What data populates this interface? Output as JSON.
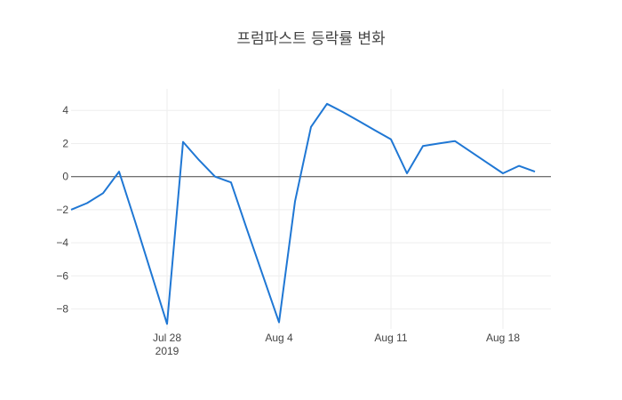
{
  "chart_data": {
    "type": "line",
    "title": "프럼파스트 등락률 변화",
    "xlabel": "",
    "ylabel": "",
    "x_range": [
      "2019-07-22",
      "2019-08-21"
    ],
    "ylim": [
      -9.2,
      5.3
    ],
    "x_ticks": [
      {
        "date": "2019-07-28",
        "label": "Jul 28",
        "sublabel": "2019"
      },
      {
        "date": "2019-08-04",
        "label": "Aug 4",
        "sublabel": ""
      },
      {
        "date": "2019-08-11",
        "label": "Aug 11",
        "sublabel": ""
      },
      {
        "date": "2019-08-18",
        "label": "Aug 18",
        "sublabel": ""
      }
    ],
    "y_ticks": [
      {
        "value": 4,
        "label": "4"
      },
      {
        "value": 2,
        "label": "2"
      },
      {
        "value": 0,
        "label": "0"
      },
      {
        "value": -2,
        "label": "−2"
      },
      {
        "value": -4,
        "label": "−4"
      },
      {
        "value": -6,
        "label": "−6"
      },
      {
        "value": -8,
        "label": "−8"
      }
    ],
    "grid": true,
    "series": [
      {
        "name": "",
        "color": "#1f77d4",
        "points": [
          {
            "x": "2019-07-22",
            "y": -2.0
          },
          {
            "x": "2019-07-23",
            "y": -1.6
          },
          {
            "x": "2019-07-24",
            "y": -1.0
          },
          {
            "x": "2019-07-25",
            "y": 0.3
          },
          {
            "x": "2019-07-26",
            "y": -2.7
          },
          {
            "x": "2019-07-27",
            "y": -5.8
          },
          {
            "x": "2019-07-28",
            "y": -8.9
          },
          {
            "x": "2019-07-29",
            "y": 2.1
          },
          {
            "x": "2019-07-30",
            "y": 1.0
          },
          {
            "x": "2019-07-31",
            "y": 0.0
          },
          {
            "x": "2019-08-01",
            "y": -0.35
          },
          {
            "x": "2019-08-02",
            "y": -3.2
          },
          {
            "x": "2019-08-03",
            "y": -6.0
          },
          {
            "x": "2019-08-04",
            "y": -8.8
          },
          {
            "x": "2019-08-05",
            "y": -1.5
          },
          {
            "x": "2019-08-06",
            "y": 3.0
          },
          {
            "x": "2019-08-07",
            "y": 4.4
          },
          {
            "x": "2019-08-08",
            "y": 3.9
          },
          {
            "x": "2019-08-09",
            "y": 3.35
          },
          {
            "x": "2019-08-10",
            "y": 2.8
          },
          {
            "x": "2019-08-11",
            "y": 2.25
          },
          {
            "x": "2019-08-12",
            "y": 0.2
          },
          {
            "x": "2019-08-13",
            "y": 1.85
          },
          {
            "x": "2019-08-14",
            "y": 2.0
          },
          {
            "x": "2019-08-15",
            "y": 2.15
          },
          {
            "x": "2019-08-16",
            "y": 1.5
          },
          {
            "x": "2019-08-17",
            "y": 0.85
          },
          {
            "x": "2019-08-18",
            "y": 0.2
          },
          {
            "x": "2019-08-19",
            "y": 0.65
          },
          {
            "x": "2019-08-20",
            "y": 0.3
          }
        ]
      }
    ]
  }
}
